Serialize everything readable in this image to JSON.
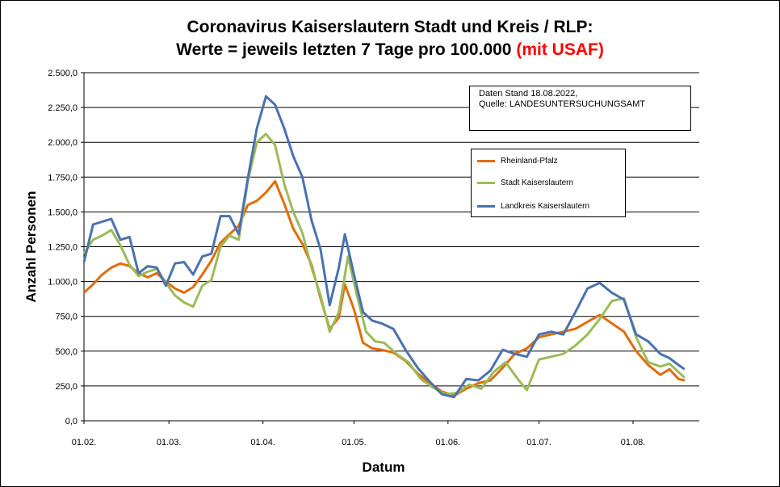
{
  "title": {
    "line1": "Coronavirus Kaiserslautern Stadt und Kreis / RLP:",
    "line2": "Werte = jeweils letzten 7 Tage pro 100.000",
    "line2_red": "(mit USAF)"
  },
  "info": {
    "line1": "Daten Stand 18.08.2022,",
    "line2": "Quelle: LANDESUNTERSUCHUNGSAMT"
  },
  "colors": {
    "rlp": "#e36c09",
    "stadt": "#9bbb59",
    "landkreis": "#4a72b0",
    "title_red": "#ff0000"
  },
  "chart_data": {
    "type": "line",
    "xlabel": "Datum",
    "ylabel": "Anzahl Personen",
    "ylim": [
      0,
      2500
    ],
    "yticks": [
      "0,0",
      "250,0",
      "500,0",
      "750,0",
      "1.000,0",
      "1.250,0",
      "1.500,0",
      "1.750,0",
      "2.000,0",
      "2.250,0",
      "2.500,0"
    ],
    "xticks": [
      {
        "label": "01.02.",
        "date": "2022-02-01"
      },
      {
        "label": "01.03.",
        "date": "2022-03-01"
      },
      {
        "label": "01.04.",
        "date": "2022-04-01"
      },
      {
        "label": "01.05.",
        "date": "2022-05-01"
      },
      {
        "label": "01.06.",
        "date": "2022-06-01"
      },
      {
        "label": "01.07.",
        "date": "2022-07-01"
      },
      {
        "label": "01.08.",
        "date": "2022-08-01"
      }
    ],
    "x_range": [
      "2022-02-01",
      "2022-08-18"
    ],
    "grid": true,
    "legend_position": "top-right",
    "series": [
      {
        "name": "Rheinland-Pfalz",
        "color": "#e36c09",
        "points": [
          [
            "2022-02-01",
            920
          ],
          [
            "2022-02-04",
            980
          ],
          [
            "2022-02-07",
            1050
          ],
          [
            "2022-02-10",
            1100
          ],
          [
            "2022-02-13",
            1130
          ],
          [
            "2022-02-16",
            1110
          ],
          [
            "2022-02-19",
            1060
          ],
          [
            "2022-02-22",
            1030
          ],
          [
            "2022-02-25",
            1060
          ],
          [
            "2022-02-28",
            1000
          ],
          [
            "2022-03-03",
            950
          ],
          [
            "2022-03-06",
            920
          ],
          [
            "2022-03-09",
            960
          ],
          [
            "2022-03-12",
            1050
          ],
          [
            "2022-03-15",
            1150
          ],
          [
            "2022-03-18",
            1280
          ],
          [
            "2022-03-21",
            1340
          ],
          [
            "2022-03-24",
            1400
          ],
          [
            "2022-03-27",
            1550
          ],
          [
            "2022-03-30",
            1580
          ],
          [
            "2022-04-02",
            1640
          ],
          [
            "2022-04-05",
            1720
          ],
          [
            "2022-04-08",
            1560
          ],
          [
            "2022-04-11",
            1380
          ],
          [
            "2022-04-14",
            1270
          ],
          [
            "2022-04-17",
            1120
          ],
          [
            "2022-04-20",
            880
          ],
          [
            "2022-04-23",
            660
          ],
          [
            "2022-04-26",
            740
          ],
          [
            "2022-04-28",
            980
          ],
          [
            "2022-05-01",
            800
          ],
          [
            "2022-05-04",
            560
          ],
          [
            "2022-05-07",
            520
          ],
          [
            "2022-05-10",
            510
          ],
          [
            "2022-05-14",
            490
          ],
          [
            "2022-05-18",
            430
          ],
          [
            "2022-05-22",
            340
          ],
          [
            "2022-05-26",
            270
          ],
          [
            "2022-05-30",
            210
          ],
          [
            "2022-06-03",
            180
          ],
          [
            "2022-06-07",
            230
          ],
          [
            "2022-06-11",
            270
          ],
          [
            "2022-06-15",
            290
          ],
          [
            "2022-06-19",
            380
          ],
          [
            "2022-06-23",
            480
          ],
          [
            "2022-06-27",
            520
          ],
          [
            "2022-07-01",
            600
          ],
          [
            "2022-07-05",
            620
          ],
          [
            "2022-07-09",
            640
          ],
          [
            "2022-07-13",
            660
          ],
          [
            "2022-07-17",
            710
          ],
          [
            "2022-07-21",
            760
          ],
          [
            "2022-07-25",
            700
          ],
          [
            "2022-07-29",
            640
          ],
          [
            "2022-08-02",
            500
          ],
          [
            "2022-08-06",
            400
          ],
          [
            "2022-08-10",
            330
          ],
          [
            "2022-08-13",
            370
          ],
          [
            "2022-08-16",
            300
          ],
          [
            "2022-08-18",
            290
          ]
        ]
      },
      {
        "name": "Stadt Kaiserslautern",
        "color": "#9bbb59",
        "points": [
          [
            "2022-02-01",
            1200
          ],
          [
            "2022-02-04",
            1300
          ],
          [
            "2022-02-07",
            1330
          ],
          [
            "2022-02-10",
            1370
          ],
          [
            "2022-02-13",
            1260
          ],
          [
            "2022-02-16",
            1120
          ],
          [
            "2022-02-19",
            1040
          ],
          [
            "2022-02-22",
            1070
          ],
          [
            "2022-02-25",
            1090
          ],
          [
            "2022-02-28",
            990
          ],
          [
            "2022-03-03",
            900
          ],
          [
            "2022-03-06",
            850
          ],
          [
            "2022-03-09",
            820
          ],
          [
            "2022-03-12",
            970
          ],
          [
            "2022-03-15",
            1010
          ],
          [
            "2022-03-18",
            1250
          ],
          [
            "2022-03-21",
            1330
          ],
          [
            "2022-03-24",
            1300
          ],
          [
            "2022-03-27",
            1720
          ],
          [
            "2022-03-30",
            2000
          ],
          [
            "2022-04-02",
            2060
          ],
          [
            "2022-04-05",
            1980
          ],
          [
            "2022-04-08",
            1700
          ],
          [
            "2022-04-11",
            1500
          ],
          [
            "2022-04-14",
            1350
          ],
          [
            "2022-04-17",
            1100
          ],
          [
            "2022-04-20",
            900
          ],
          [
            "2022-04-23",
            640
          ],
          [
            "2022-04-26",
            780
          ],
          [
            "2022-04-29",
            1180
          ],
          [
            "2022-05-02",
            900
          ],
          [
            "2022-05-05",
            640
          ],
          [
            "2022-05-08",
            570
          ],
          [
            "2022-05-11",
            560
          ],
          [
            "2022-05-15",
            480
          ],
          [
            "2022-05-19",
            420
          ],
          [
            "2022-05-23",
            300
          ],
          [
            "2022-05-27",
            240
          ],
          [
            "2022-05-31",
            190
          ],
          [
            "2022-06-04",
            200
          ],
          [
            "2022-06-08",
            260
          ],
          [
            "2022-06-12",
            230
          ],
          [
            "2022-06-16",
            350
          ],
          [
            "2022-06-20",
            420
          ],
          [
            "2022-06-24",
            300
          ],
          [
            "2022-06-27",
            220
          ],
          [
            "2022-07-01",
            440
          ],
          [
            "2022-07-05",
            460
          ],
          [
            "2022-07-09",
            480
          ],
          [
            "2022-07-13",
            540
          ],
          [
            "2022-07-17",
            620
          ],
          [
            "2022-07-21",
            730
          ],
          [
            "2022-07-25",
            860
          ],
          [
            "2022-07-29",
            880
          ],
          [
            "2022-08-02",
            600
          ],
          [
            "2022-08-06",
            420
          ],
          [
            "2022-08-10",
            390
          ],
          [
            "2022-08-13",
            410
          ],
          [
            "2022-08-16",
            350
          ],
          [
            "2022-08-18",
            310
          ]
        ]
      },
      {
        "name": "Landkreis Kaiserslautern",
        "color": "#4a72b0",
        "points": [
          [
            "2022-02-01",
            1140
          ],
          [
            "2022-02-04",
            1410
          ],
          [
            "2022-02-07",
            1430
          ],
          [
            "2022-02-10",
            1450
          ],
          [
            "2022-02-13",
            1300
          ],
          [
            "2022-02-16",
            1320
          ],
          [
            "2022-02-19",
            1060
          ],
          [
            "2022-02-22",
            1110
          ],
          [
            "2022-02-25",
            1100
          ],
          [
            "2022-02-28",
            970
          ],
          [
            "2022-03-03",
            1130
          ],
          [
            "2022-03-06",
            1140
          ],
          [
            "2022-03-09",
            1050
          ],
          [
            "2022-03-12",
            1180
          ],
          [
            "2022-03-15",
            1200
          ],
          [
            "2022-03-18",
            1470
          ],
          [
            "2022-03-21",
            1470
          ],
          [
            "2022-03-24",
            1340
          ],
          [
            "2022-03-27",
            1740
          ],
          [
            "2022-03-30",
            2100
          ],
          [
            "2022-04-02",
            2330
          ],
          [
            "2022-04-05",
            2270
          ],
          [
            "2022-04-08",
            2100
          ],
          [
            "2022-04-11",
            1900
          ],
          [
            "2022-04-14",
            1750
          ],
          [
            "2022-04-17",
            1440
          ],
          [
            "2022-04-20",
            1230
          ],
          [
            "2022-04-23",
            830
          ],
          [
            "2022-04-26",
            1100
          ],
          [
            "2022-04-28",
            1340
          ],
          [
            "2022-05-01",
            1050
          ],
          [
            "2022-05-04",
            780
          ],
          [
            "2022-05-07",
            720
          ],
          [
            "2022-05-10",
            700
          ],
          [
            "2022-05-14",
            660
          ],
          [
            "2022-05-18",
            510
          ],
          [
            "2022-05-22",
            380
          ],
          [
            "2022-05-26",
            280
          ],
          [
            "2022-05-30",
            190
          ],
          [
            "2022-06-03",
            170
          ],
          [
            "2022-06-07",
            300
          ],
          [
            "2022-06-11",
            290
          ],
          [
            "2022-06-15",
            360
          ],
          [
            "2022-06-19",
            510
          ],
          [
            "2022-06-23",
            480
          ],
          [
            "2022-06-27",
            460
          ],
          [
            "2022-07-01",
            620
          ],
          [
            "2022-07-05",
            640
          ],
          [
            "2022-07-09",
            620
          ],
          [
            "2022-07-13",
            780
          ],
          [
            "2022-07-17",
            950
          ],
          [
            "2022-07-21",
            990
          ],
          [
            "2022-07-25",
            920
          ],
          [
            "2022-07-29",
            870
          ],
          [
            "2022-08-02",
            620
          ],
          [
            "2022-08-06",
            570
          ],
          [
            "2022-08-10",
            480
          ],
          [
            "2022-08-13",
            450
          ],
          [
            "2022-08-16",
            400
          ],
          [
            "2022-08-18",
            370
          ]
        ]
      }
    ]
  }
}
